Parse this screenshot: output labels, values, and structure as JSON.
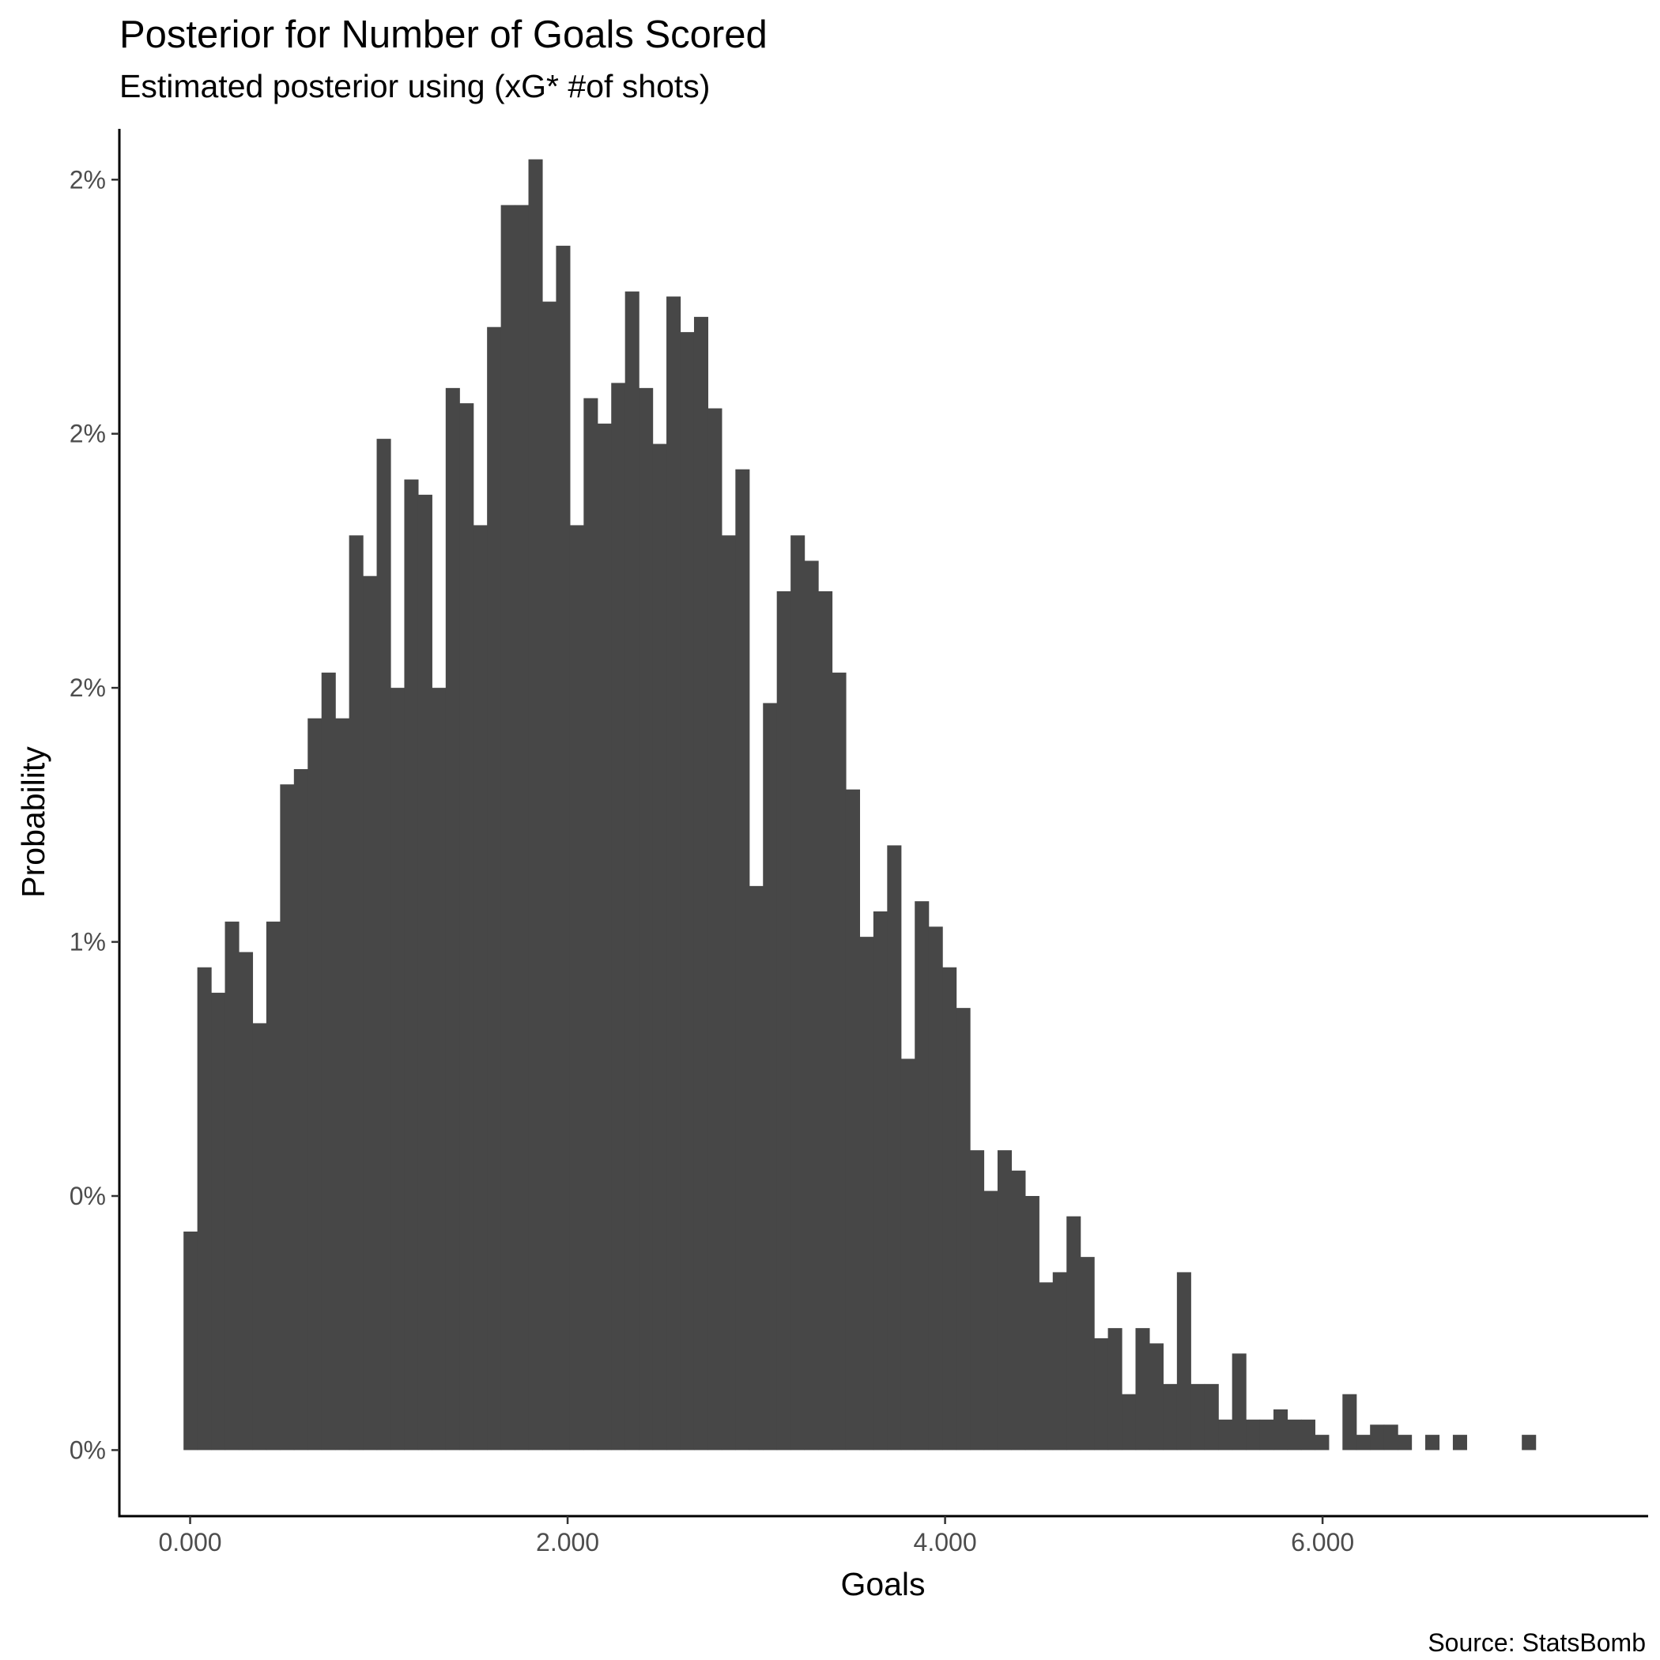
{
  "chart_data": {
    "type": "bar",
    "title": "Posterior for Number of Goals Scored",
    "subtitle": "Estimated posterior using (xG* #of shots)",
    "caption": "Source: StatsBomb",
    "xlabel": "Goals",
    "ylabel": "Probability",
    "x_ticks": [
      {
        "value": 0,
        "label": "0.000"
      },
      {
        "value": 2,
        "label": "2.000"
      },
      {
        "value": 4,
        "label": "4.000"
      },
      {
        "value": 6,
        "label": "6.000"
      }
    ],
    "y_ticks": [
      {
        "value": 0.0,
        "label": "0%"
      },
      {
        "value": 0.5,
        "label": "0%"
      },
      {
        "value": 1.0,
        "label": "1%"
      },
      {
        "value": 1.5,
        "label": "2%"
      },
      {
        "value": 2.0,
        "label": "2%"
      },
      {
        "value": 2.5,
        "label": "2%"
      }
    ],
    "xlim": [
      -0.375,
      7.725
    ],
    "ylim": [
      -0.13,
      2.6
    ],
    "grid": false,
    "bar_color": "#474747",
    "bin_start": -0.035,
    "bin_width": 0.0731,
    "values": [
      0.43,
      0.95,
      0.9,
      1.04,
      0.98,
      0.84,
      1.04,
      1.31,
      1.34,
      1.44,
      1.53,
      1.44,
      1.8,
      1.72,
      1.99,
      1.5,
      1.91,
      1.88,
      1.5,
      2.09,
      2.06,
      1.82,
      2.21,
      2.45,
      2.45,
      2.54,
      2.26,
      2.37,
      1.82,
      2.07,
      2.02,
      2.1,
      2.28,
      2.09,
      1.98,
      2.27,
      2.2,
      2.23,
      2.05,
      1.8,
      1.93,
      1.11,
      1.47,
      1.69,
      1.8,
      1.75,
      1.69,
      1.53,
      1.3,
      1.01,
      1.06,
      1.19,
      0.77,
      1.08,
      1.03,
      0.95,
      0.87,
      0.59,
      0.51,
      0.59,
      0.55,
      0.5,
      0.33,
      0.35,
      0.46,
      0.38,
      0.22,
      0.24,
      0.11,
      0.24,
      0.21,
      0.13,
      0.35,
      0.13,
      0.13,
      0.06,
      0.19,
      0.06,
      0.06,
      0.08,
      0.06,
      0.06,
      0.03,
      0.0,
      0.11,
      0.03,
      0.05,
      0.05,
      0.03,
      0.0,
      0.03,
      0.0,
      0.03,
      0.0,
      0.0,
      0.0,
      0.0,
      0.03
    ]
  }
}
